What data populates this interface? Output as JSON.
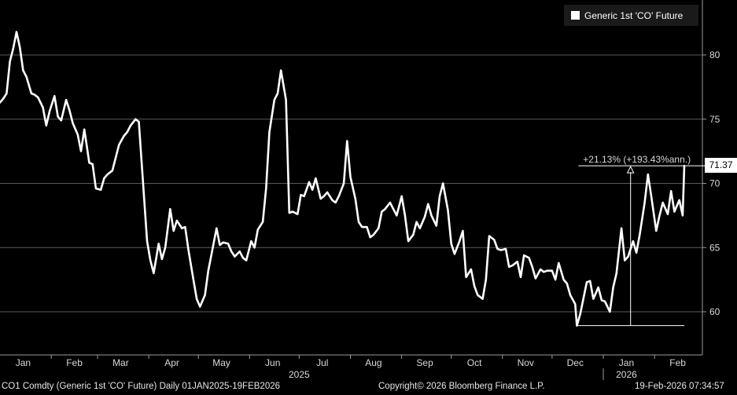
{
  "legend": {
    "series_name": "Generic 1st 'CO' Future",
    "color": "#ffffff"
  },
  "footer": {
    "left": "CO1 Comdty (Generic 1st 'CO' Future) Daily 01JAN2025-19FEB2026",
    "center": "Copyright© 2026 Bloomberg Finance L.P.",
    "right": "19-Feb-2026 07:34:57"
  },
  "chart_data": {
    "type": "line",
    "y_ticks": [
      60,
      65,
      70,
      75,
      80
    ],
    "ylim": [
      57.5,
      83
    ],
    "x_labels": [
      {
        "label": "Jan",
        "date": "2025-01-15"
      },
      {
        "label": "Feb",
        "date": "2025-02-15"
      },
      {
        "label": "Mar",
        "date": "2025-03-15"
      },
      {
        "label": "Apr",
        "date": "2025-04-15"
      },
      {
        "label": "May",
        "date": "2025-05-15"
      },
      {
        "label": "Jun",
        "date": "2025-06-15"
      },
      {
        "label": "Jul",
        "date": "2025-07-15"
      },
      {
        "label": "Aug",
        "date": "2025-08-15"
      },
      {
        "label": "Sep",
        "date": "2025-09-15"
      },
      {
        "label": "Oct",
        "date": "2025-10-15"
      },
      {
        "label": "Nov",
        "date": "2025-11-15"
      },
      {
        "label": "Dec",
        "date": "2025-12-15"
      },
      {
        "label": "Jan",
        "date": "2026-01-15"
      },
      {
        "label": "Feb",
        "date": "2026-02-15"
      }
    ],
    "year_labels": [
      {
        "label": "2025",
        "date": "2025-07-01"
      },
      {
        "label": "2026",
        "date": "2026-01-15"
      }
    ],
    "xlim": [
      "2025-01-01",
      "2026-02-24"
    ],
    "last_value": "71.37",
    "annotation": {
      "text": "+21.13% (+193.43%ann.)",
      "from": {
        "date": "2025-12-16",
        "value": 58.92
      },
      "to": {
        "date": "2026-02-19",
        "value": 71.37
      }
    },
    "series": [
      {
        "color": "#ffffff",
        "points": [
          [
            "2025-01-01",
            76.3
          ],
          [
            "2025-01-03",
            76.6
          ],
          [
            "2025-01-05",
            77.0
          ],
          [
            "2025-01-07",
            79.5
          ],
          [
            "2025-01-09",
            80.5
          ],
          [
            "2025-01-11",
            81.8
          ],
          [
            "2025-01-13",
            80.6
          ],
          [
            "2025-01-15",
            78.8
          ],
          [
            "2025-01-17",
            78.3
          ],
          [
            "2025-01-20",
            77.0
          ],
          [
            "2025-01-22",
            76.9
          ],
          [
            "2025-01-24",
            76.7
          ],
          [
            "2025-01-27",
            75.9
          ],
          [
            "2025-01-29",
            74.5
          ],
          [
            "2025-01-31",
            75.6
          ],
          [
            "2025-02-03",
            76.8
          ],
          [
            "2025-02-05",
            75.2
          ],
          [
            "2025-02-07",
            74.9
          ],
          [
            "2025-02-10",
            76.5
          ],
          [
            "2025-02-12",
            75.7
          ],
          [
            "2025-02-14",
            74.7
          ],
          [
            "2025-02-17",
            73.8
          ],
          [
            "2025-02-19",
            72.5
          ],
          [
            "2025-02-21",
            74.2
          ],
          [
            "2025-02-24",
            71.6
          ],
          [
            "2025-02-26",
            71.5
          ],
          [
            "2025-02-28",
            69.6
          ],
          [
            "2025-03-03",
            69.5
          ],
          [
            "2025-03-05",
            70.4
          ],
          [
            "2025-03-07",
            70.7
          ],
          [
            "2025-03-10",
            71.0
          ],
          [
            "2025-03-12",
            72.0
          ],
          [
            "2025-03-14",
            73.0
          ],
          [
            "2025-03-17",
            73.7
          ],
          [
            "2025-03-19",
            74.0
          ],
          [
            "2025-03-21",
            74.5
          ],
          [
            "2025-03-24",
            75.0
          ],
          [
            "2025-03-26",
            74.8
          ],
          [
            "2025-03-31",
            65.5
          ],
          [
            "2025-04-02",
            64.0
          ],
          [
            "2025-04-04",
            63.0
          ],
          [
            "2025-04-07",
            65.3
          ],
          [
            "2025-04-09",
            64.1
          ],
          [
            "2025-04-11",
            65.0
          ],
          [
            "2025-04-14",
            68.0
          ],
          [
            "2025-04-16",
            66.3
          ],
          [
            "2025-04-18",
            67.1
          ],
          [
            "2025-04-21",
            66.5
          ],
          [
            "2025-04-23",
            66.6
          ],
          [
            "2025-04-25",
            64.8
          ],
          [
            "2025-04-28",
            62.5
          ],
          [
            "2025-04-30",
            61.0
          ],
          [
            "2025-05-02",
            60.4
          ],
          [
            "2025-05-05",
            61.3
          ],
          [
            "2025-05-07",
            63.2
          ],
          [
            "2025-05-09",
            64.5
          ],
          [
            "2025-05-12",
            66.5
          ],
          [
            "2025-05-14",
            65.2
          ],
          [
            "2025-05-16",
            65.4
          ],
          [
            "2025-05-19",
            65.3
          ],
          [
            "2025-05-21",
            64.7
          ],
          [
            "2025-05-23",
            64.3
          ],
          [
            "2025-05-26",
            64.7
          ],
          [
            "2025-05-28",
            64.2
          ],
          [
            "2025-05-30",
            64.0
          ],
          [
            "2025-06-02",
            65.5
          ],
          [
            "2025-06-04",
            65.0
          ],
          [
            "2025-06-06",
            66.4
          ],
          [
            "2025-06-09",
            67.0
          ],
          [
            "2025-06-11",
            69.6
          ],
          [
            "2025-06-13",
            74.0
          ],
          [
            "2025-06-16",
            76.5
          ],
          [
            "2025-06-18",
            77.0
          ],
          [
            "2025-06-20",
            78.8
          ],
          [
            "2025-06-23",
            76.5
          ],
          [
            "2025-06-25",
            67.7
          ],
          [
            "2025-06-27",
            67.8
          ],
          [
            "2025-06-30",
            67.6
          ],
          [
            "2025-07-02",
            69.1
          ],
          [
            "2025-07-04",
            69.0
          ],
          [
            "2025-07-07",
            70.1
          ],
          [
            "2025-07-09",
            69.5
          ],
          [
            "2025-07-11",
            70.4
          ],
          [
            "2025-07-14",
            68.8
          ],
          [
            "2025-07-16",
            69.0
          ],
          [
            "2025-07-18",
            69.3
          ],
          [
            "2025-07-21",
            68.7
          ],
          [
            "2025-07-23",
            68.5
          ],
          [
            "2025-07-25",
            69.0
          ],
          [
            "2025-07-28",
            70.0
          ],
          [
            "2025-07-30",
            73.3
          ],
          [
            "2025-08-01",
            70.5
          ],
          [
            "2025-08-04",
            68.8
          ],
          [
            "2025-08-06",
            67.0
          ],
          [
            "2025-08-08",
            66.6
          ],
          [
            "2025-08-11",
            66.6
          ],
          [
            "2025-08-13",
            65.8
          ],
          [
            "2025-08-15",
            66.0
          ],
          [
            "2025-08-18",
            66.5
          ],
          [
            "2025-08-20",
            67.8
          ],
          [
            "2025-08-22",
            68.0
          ],
          [
            "2025-08-25",
            68.5
          ],
          [
            "2025-08-27",
            68.0
          ],
          [
            "2025-08-29",
            67.5
          ],
          [
            "2025-09-01",
            69.0
          ],
          [
            "2025-09-03",
            67.5
          ],
          [
            "2025-09-05",
            65.5
          ],
          [
            "2025-09-08",
            66.0
          ],
          [
            "2025-09-10",
            67.0
          ],
          [
            "2025-09-12",
            66.5
          ],
          [
            "2025-09-15",
            67.4
          ],
          [
            "2025-09-17",
            68.4
          ],
          [
            "2025-09-19",
            67.5
          ],
          [
            "2025-09-22",
            66.7
          ],
          [
            "2025-09-24",
            69.0
          ],
          [
            "2025-09-26",
            70.0
          ],
          [
            "2025-09-29",
            67.9
          ],
          [
            "2025-10-01",
            65.3
          ],
          [
            "2025-10-03",
            64.5
          ],
          [
            "2025-10-06",
            65.5
          ],
          [
            "2025-10-08",
            66.3
          ],
          [
            "2025-10-10",
            62.7
          ],
          [
            "2025-10-13",
            63.3
          ],
          [
            "2025-10-15",
            62.0
          ],
          [
            "2025-10-17",
            61.3
          ],
          [
            "2025-10-20",
            61.0
          ],
          [
            "2025-10-22",
            62.5
          ],
          [
            "2025-10-24",
            65.9
          ],
          [
            "2025-10-27",
            65.6
          ],
          [
            "2025-10-29",
            64.9
          ],
          [
            "2025-10-31",
            64.8
          ],
          [
            "2025-11-03",
            64.9
          ],
          [
            "2025-11-05",
            63.5
          ],
          [
            "2025-11-07",
            63.6
          ],
          [
            "2025-11-10",
            63.9
          ],
          [
            "2025-11-12",
            62.7
          ],
          [
            "2025-11-14",
            64.4
          ],
          [
            "2025-11-17",
            64.2
          ],
          [
            "2025-11-19",
            63.5
          ],
          [
            "2025-11-21",
            62.6
          ],
          [
            "2025-11-24",
            63.3
          ],
          [
            "2025-11-26",
            63.1
          ],
          [
            "2025-11-28",
            63.2
          ],
          [
            "2025-12-01",
            63.2
          ],
          [
            "2025-12-03",
            62.5
          ],
          [
            "2025-12-05",
            63.8
          ],
          [
            "2025-12-08",
            62.5
          ],
          [
            "2025-12-10",
            62.2
          ],
          [
            "2025-12-12",
            61.3
          ],
          [
            "2025-12-15",
            60.6
          ],
          [
            "2025-12-16",
            58.92
          ],
          [
            "2025-12-18",
            59.8
          ],
          [
            "2025-12-22",
            62.3
          ],
          [
            "2025-12-24",
            62.4
          ],
          [
            "2025-12-26",
            61.0
          ],
          [
            "2025-12-29",
            61.9
          ],
          [
            "2025-12-31",
            60.9
          ],
          [
            "2026-01-02",
            60.8
          ],
          [
            "2026-01-05",
            60.0
          ],
          [
            "2026-01-07",
            61.9
          ],
          [
            "2026-01-09",
            63.0
          ],
          [
            "2026-01-12",
            66.5
          ],
          [
            "2026-01-14",
            64.0
          ],
          [
            "2026-01-16",
            64.3
          ],
          [
            "2026-01-19",
            65.5
          ],
          [
            "2026-01-21",
            64.6
          ],
          [
            "2026-01-23",
            66.0
          ],
          [
            "2026-01-26",
            68.5
          ],
          [
            "2026-01-28",
            70.7
          ],
          [
            "2026-01-30",
            69.0
          ],
          [
            "2026-02-02",
            66.3
          ],
          [
            "2026-02-04",
            67.5
          ],
          [
            "2026-02-06",
            68.5
          ],
          [
            "2026-02-09",
            67.6
          ],
          [
            "2026-02-11",
            69.4
          ],
          [
            "2026-02-13",
            67.8
          ],
          [
            "2026-02-16",
            68.7
          ],
          [
            "2026-02-18",
            67.5
          ],
          [
            "2026-02-19",
            71.37
          ]
        ]
      }
    ]
  }
}
